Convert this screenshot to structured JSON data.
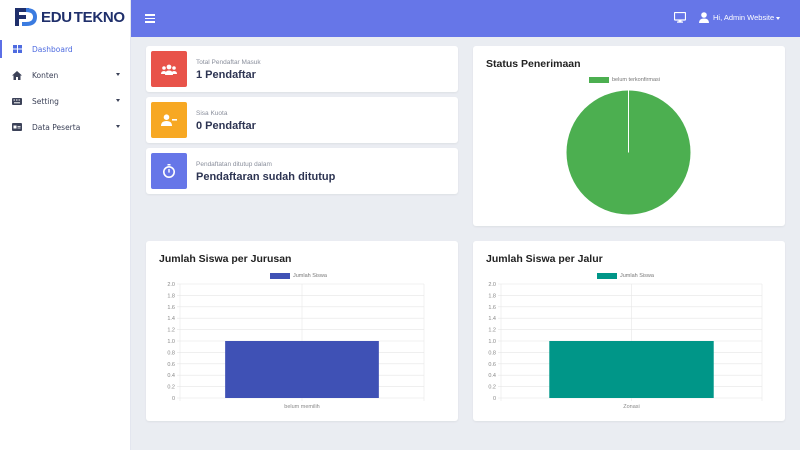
{
  "brand": {
    "prefix": "EDU",
    "suffix": "TEKNO"
  },
  "sidebar": {
    "items": [
      {
        "label": "Dashboard",
        "icon": "dashboard-icon",
        "active": true,
        "has_caret": false
      },
      {
        "label": "Konten",
        "icon": "home-icon",
        "active": false,
        "has_caret": true
      },
      {
        "label": "Setting",
        "icon": "keyboard-icon",
        "active": false,
        "has_caret": true
      },
      {
        "label": "Data Peserta",
        "icon": "id-card-icon",
        "active": false,
        "has_caret": true
      }
    ]
  },
  "topbar": {
    "user_label": "Hi, Admin Website",
    "menu_icon": "hamburger-icon",
    "display_icon": "monitor-icon",
    "user_icon": "user-icon"
  },
  "stats": [
    {
      "label": "Total Pendaftar Masuk",
      "value": "1 Pendaftar",
      "color": "#e8534a",
      "icon": "users-icon"
    },
    {
      "label": "Sisa Kuota",
      "value": "0 Pendaftar",
      "color": "#f7a823",
      "icon": "user-minus-icon"
    },
    {
      "label": "Pendaftatan ditutup dalam",
      "value": "Pendaftaran sudah ditutup",
      "color": "#6676e8",
      "icon": "stopwatch-icon"
    }
  ],
  "status_chart": {
    "title": "Status Penerimaan",
    "chart_data": {
      "type": "pie",
      "labels": [
        "belum terkonfirmasi"
      ],
      "values": [
        1
      ],
      "colors": [
        "#4caf50"
      ]
    }
  },
  "jurusan_chart": {
    "title": "Jumlah Siswa per Jurusan",
    "chart_data": {
      "type": "bar",
      "categories": [
        "belum memilih"
      ],
      "series": [
        {
          "name": "Jumlah Siswa",
          "values": [
            1.0
          ],
          "color": "#3f51b5"
        }
      ],
      "ylim": [
        0,
        2.0
      ],
      "yticks": [
        "2.0",
        "1.8",
        "1.6",
        "1.4",
        "1.2",
        "1.0",
        "0.8",
        "0.6",
        "0.4",
        "0.2",
        "0"
      ]
    }
  },
  "jalur_chart": {
    "title": "Jumlah Siswa per Jalur",
    "chart_data": {
      "type": "bar",
      "categories": [
        "Zonasi"
      ],
      "series": [
        {
          "name": "Jumlah Siswa",
          "values": [
            1.0
          ],
          "color": "#009688"
        }
      ],
      "ylim": [
        0,
        2.0
      ],
      "yticks": [
        "2.0",
        "1.8",
        "1.6",
        "1.4",
        "1.2",
        "1.0",
        "0.8",
        "0.6",
        "0.4",
        "0.2",
        "0"
      ]
    }
  }
}
